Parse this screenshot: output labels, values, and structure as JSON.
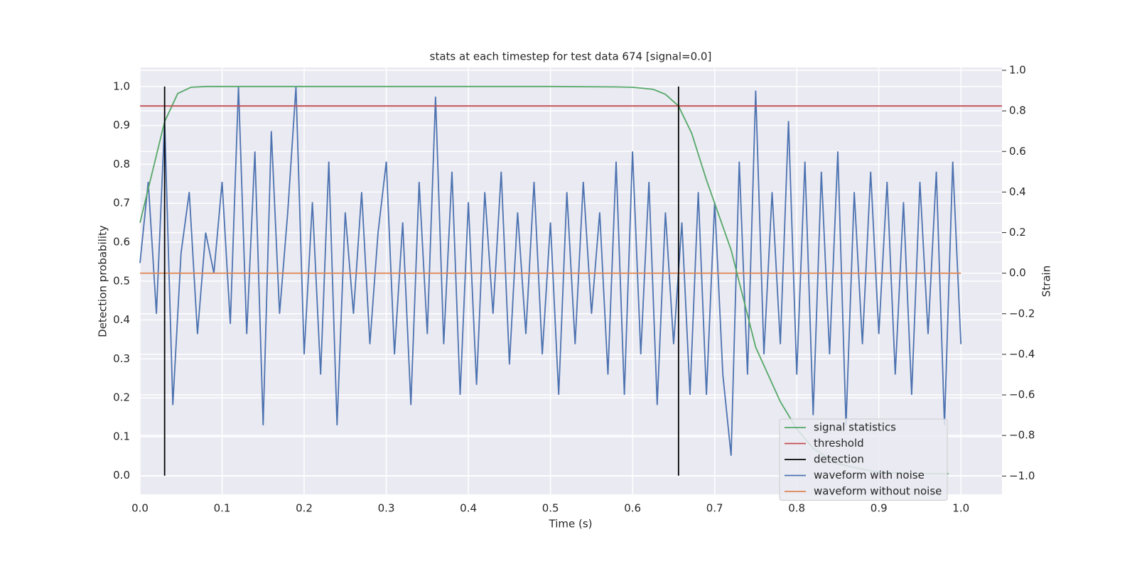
{
  "chart_data": {
    "type": "line",
    "title": "stats at each timestep for test data 674 [signal=0.0]",
    "x_label": "Time (s)",
    "y_label": "Detection probability",
    "y2_label": "Strain",
    "xlim": [
      0,
      1.05
    ],
    "ylim": [
      -0.048,
      1.049
    ],
    "y2lim": [
      -1.09,
      1.014
    ],
    "xticks": [
      {
        "value": 0,
        "label": "0.0"
      },
      {
        "value": 0.1,
        "label": "0.1"
      },
      {
        "value": 0.2,
        "label": "0.2"
      },
      {
        "value": 0.3,
        "label": "0.3"
      },
      {
        "value": 0.4,
        "label": "0.4"
      },
      {
        "value": 0.5,
        "label": "0.5"
      },
      {
        "value": 0.6,
        "label": "0.6"
      },
      {
        "value": 0.7,
        "label": "0.7"
      },
      {
        "value": 0.8,
        "label": "0.8"
      },
      {
        "value": 0.9,
        "label": "0.9"
      },
      {
        "value": 1,
        "label": "1.0"
      }
    ],
    "yticks": [
      {
        "value": 0,
        "label": "0.0"
      },
      {
        "value": 0.1,
        "label": "0.1"
      },
      {
        "value": 0.2,
        "label": "0.2"
      },
      {
        "value": 0.3,
        "label": "0.3"
      },
      {
        "value": 0.4,
        "label": "0.4"
      },
      {
        "value": 0.5,
        "label": "0.5"
      },
      {
        "value": 0.6,
        "label": "0.6"
      },
      {
        "value": 0.7,
        "label": "0.7"
      },
      {
        "value": 0.8,
        "label": "0.8"
      },
      {
        "value": 0.9,
        "label": "0.9"
      },
      {
        "value": 1,
        "label": "1.0"
      }
    ],
    "y2ticks": [
      {
        "value": -1,
        "label": "−1.0"
      },
      {
        "value": -0.8,
        "label": "−0.8"
      },
      {
        "value": -0.6,
        "label": "−0.6"
      },
      {
        "value": -0.4,
        "label": "−0.4"
      },
      {
        "value": -0.2,
        "label": "−0.2"
      },
      {
        "value": 0,
        "label": "0.0"
      },
      {
        "value": 0.2,
        "label": "0.2"
      },
      {
        "value": 0.4,
        "label": "0.4"
      },
      {
        "value": 0.6,
        "label": "0.6"
      },
      {
        "value": 0.8,
        "label": "0.8"
      },
      {
        "value": 1,
        "label": "1.0"
      }
    ],
    "grid": true,
    "legend": "lower right",
    "series": [
      {
        "name": "signal statistics",
        "color": "#55a868",
        "style": "line",
        "x": [
          0,
          0.015,
          0.03,
          0.046,
          0.062,
          0.08,
          0.1,
          0.2,
          0.3,
          0.4,
          0.5,
          0.58,
          0.6,
          0.625,
          0.64,
          0.656,
          0.672,
          0.69,
          0.72,
          0.75,
          0.78,
          0.8,
          0.82,
          0.85,
          0.9,
          0.95,
          0.985
        ],
        "values": [
          0.65,
          0.78,
          0.91,
          0.982,
          0.998,
          1,
          1,
          1,
          1,
          1,
          1,
          0.999,
          0.998,
          0.993,
          0.98,
          0.95,
          0.88,
          0.76,
          0.58,
          0.33,
          0.19,
          0.12,
          0.07,
          0.03,
          0.008,
          0.005,
          0.005
        ]
      },
      {
        "name": "threshold",
        "color": "#c44e52",
        "style": "line",
        "x": [
          0,
          1.05
        ],
        "values": [
          0.95,
          0.95
        ]
      },
      {
        "name": "detection",
        "color": "#000000",
        "style": "vline",
        "x": [
          0.03,
          0.656
        ],
        "values": [
          1,
          1
        ]
      },
      {
        "name": "waveform with noise",
        "color": "#4c72b0",
        "style": "line",
        "axis": "y2",
        "x": [
          0,
          0.01,
          0.02,
          0.03,
          0.04,
          0.05,
          0.06,
          0.07,
          0.08,
          0.09,
          0.1,
          0.11,
          0.12,
          0.13,
          0.14,
          0.15,
          0.16,
          0.17,
          0.18,
          0.19,
          0.2,
          0.21,
          0.22,
          0.23,
          0.24,
          0.25,
          0.26,
          0.27,
          0.28,
          0.29,
          0.3,
          0.31,
          0.32,
          0.33,
          0.34,
          0.35,
          0.36,
          0.37,
          0.38,
          0.39,
          0.4,
          0.41,
          0.42,
          0.43,
          0.44,
          0.45,
          0.46,
          0.47,
          0.48,
          0.49,
          0.5,
          0.51,
          0.52,
          0.53,
          0.54,
          0.55,
          0.56,
          0.57,
          0.58,
          0.59,
          0.6,
          0.61,
          0.62,
          0.63,
          0.64,
          0.65,
          0.66,
          0.67,
          0.68,
          0.69,
          0.7,
          0.71,
          0.72,
          0.73,
          0.74,
          0.75,
          0.76,
          0.77,
          0.78,
          0.79,
          0.8,
          0.81,
          0.82,
          0.83,
          0.84,
          0.85,
          0.86,
          0.87,
          0.88,
          0.89,
          0.9,
          0.91,
          0.92,
          0.93,
          0.94,
          0.95,
          0.96,
          0.97,
          0.98,
          0.99,
          1
        ],
        "values": [
          0.05,
          0.45,
          -0.2,
          0.75,
          -0.65,
          0.1,
          0.4,
          -0.3,
          0.2,
          0,
          0.45,
          -0.25,
          0.92,
          -0.3,
          0.6,
          -0.75,
          0.7,
          -0.2,
          0.3,
          0.92,
          -0.4,
          0.35,
          -0.5,
          0.55,
          -0.75,
          0.3,
          -0.2,
          0.4,
          -0.35,
          0.2,
          0.55,
          -0.4,
          0.25,
          -0.65,
          0.45,
          -0.3,
          0.87,
          -0.35,
          0.5,
          -0.6,
          0.35,
          -0.55,
          0.4,
          -0.2,
          0.5,
          -0.45,
          0.3,
          -0.3,
          0.45,
          -0.4,
          0.25,
          -0.6,
          0.4,
          -0.35,
          0.45,
          -0.2,
          0.3,
          -0.5,
          0.55,
          -0.6,
          0.6,
          -0.4,
          0.45,
          -0.65,
          0.3,
          -0.35,
          0.25,
          -0.6,
          0.4,
          -0.6,
          0.35,
          -0.5,
          -0.9,
          0.55,
          -0.5,
          0.9,
          -0.4,
          0.4,
          -0.35,
          0.75,
          -0.5,
          0.55,
          -0.7,
          0.5,
          -0.4,
          0.6,
          -0.75,
          0.4,
          -0.35,
          0.5,
          -0.3,
          0.45,
          -0.5,
          0.35,
          -0.6,
          0.45,
          -0.3,
          0.5,
          -0.75,
          0.55,
          -0.35
        ]
      },
      {
        "name": "waveform without noise",
        "color": "#dd8452",
        "style": "line",
        "axis": "y2",
        "x": [
          0,
          1
        ],
        "values": [
          0,
          0
        ]
      }
    ]
  }
}
